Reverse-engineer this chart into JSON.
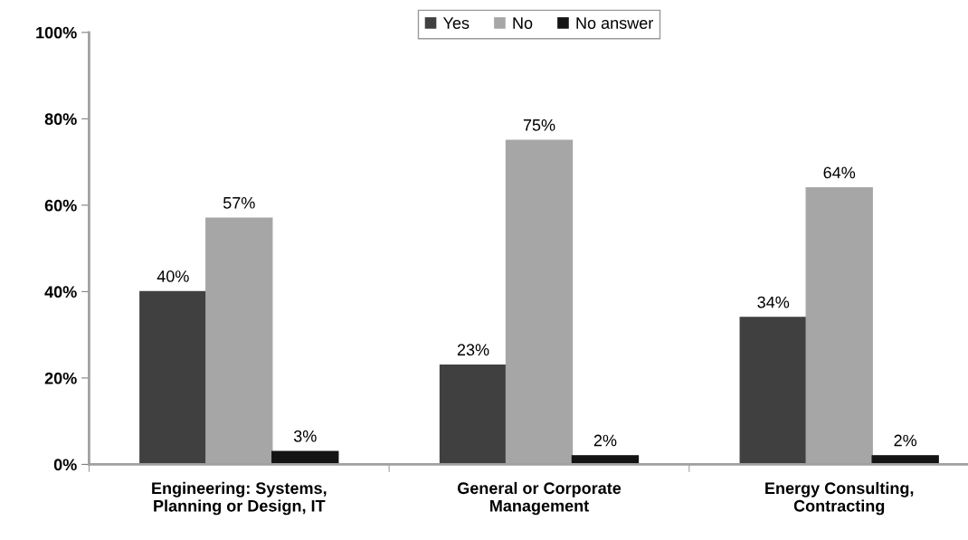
{
  "chart_data": {
    "type": "bar",
    "categories": [
      "Engineering: Systems,\nPlanning or Design, IT",
      "General or Corporate\nManagement",
      "Energy Consulting,\nContracting"
    ],
    "series": [
      {
        "name": "Yes",
        "color": "#404040",
        "values": [
          40,
          23,
          34
        ],
        "value_labels": [
          "40%",
          "23%",
          "34%"
        ]
      },
      {
        "name": "No",
        "color": "#a6a6a6",
        "values": [
          57,
          75,
          64
        ],
        "value_labels": [
          "57%",
          "75%",
          "64%"
        ]
      },
      {
        "name": "No answer",
        "color": "#141414",
        "values": [
          3,
          2,
          2
        ],
        "value_labels": [
          "3%",
          "2%",
          "2%"
        ]
      }
    ],
    "ylim": [
      0,
      100
    ],
    "yticks": [
      {
        "value": 0,
        "label": "0%"
      },
      {
        "value": 20,
        "label": "20%"
      },
      {
        "value": 40,
        "label": "40%"
      },
      {
        "value": 60,
        "label": "60%"
      },
      {
        "value": 80,
        "label": "80%"
      },
      {
        "value": 100,
        "label": "100%"
      }
    ],
    "grid": false,
    "legend": "top"
  }
}
